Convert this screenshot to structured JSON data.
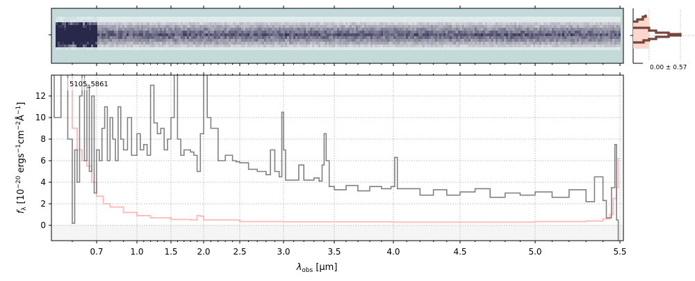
{
  "chart_data": {
    "type": "line",
    "object_id": "5105_5861",
    "xlabel": "λobs [μm]",
    "xlabel_main": "λ",
    "xlabel_sub": "obs",
    "xlabel_unit": " [μm]",
    "ylabel": "fλ [10^-20 ergs^-1 cm^-2 Å^-1]",
    "xlim": [
      0.51,
      5.52
    ],
    "ylim": [
      -1.4,
      13.9
    ],
    "x_scale": "nonlinear (resolution-matched)",
    "x_ticks": [
      0.7,
      1.0,
      1.5,
      2.0,
      2.5,
      3.0,
      3.5,
      4.0,
      4.5,
      5.0,
      5.5
    ],
    "x_tick_labels": [
      "0.7",
      "1.0",
      "1.5",
      "2.0",
      "2.5",
      "3.0",
      "3.5",
      "4.0",
      "4.5",
      "5.0",
      "5.5"
    ],
    "y_ticks": [
      0,
      2,
      4,
      6,
      8,
      10,
      12
    ],
    "y_tick_labels": [
      "0",
      "2",
      "4",
      "6",
      "8",
      "10",
      "12"
    ],
    "grid": true,
    "colors": {
      "flux": "#808080",
      "error": "#ffb3b3",
      "zero_band": "#f3f3f3",
      "trace_bg": "#c4d9d9"
    },
    "series": [
      {
        "role": "flux",
        "drawstyle": "steps",
        "x": [
          0.53,
          0.545,
          0.56,
          0.575,
          0.59,
          0.6,
          0.61,
          0.62,
          0.63,
          0.64,
          0.65,
          0.66,
          0.67,
          0.68,
          0.69,
          0.7,
          0.72,
          0.74,
          0.76,
          0.78,
          0.8,
          0.82,
          0.84,
          0.86,
          0.88,
          0.9,
          0.93,
          0.96,
          1.0,
          1.05,
          1.1,
          1.15,
          1.2,
          1.25,
          1.3,
          1.35,
          1.4,
          1.45,
          1.5,
          1.55,
          1.6,
          1.65,
          1.7,
          1.8,
          1.85,
          1.9,
          1.95,
          2.0,
          2.03,
          2.05,
          2.1,
          2.2,
          2.3,
          2.4,
          2.45,
          2.5,
          2.6,
          2.7,
          2.8,
          2.85,
          2.9,
          2.95,
          2.98,
          3.0,
          3.02,
          3.1,
          3.15,
          3.2,
          3.3,
          3.35,
          3.38,
          3.4,
          3.42,
          3.45,
          3.5,
          3.6,
          3.7,
          3.8,
          3.9,
          3.98,
          4.01,
          4.03,
          4.1,
          4.2,
          4.3,
          4.4,
          4.5,
          4.6,
          4.7,
          4.8,
          4.9,
          5.0,
          5.1,
          5.2,
          5.3,
          5.35,
          5.4,
          5.42,
          5.45,
          5.47,
          5.48,
          5.49
        ],
        "y": [
          -1.4,
          14,
          10,
          14,
          8,
          0.2,
          7,
          4,
          12,
          14,
          6,
          13,
          5,
          12,
          3,
          7,
          6,
          9,
          11,
          6,
          10,
          8,
          6,
          11,
          8,
          7,
          10,
          6.5,
          8.5,
          7,
          7.5,
          6.5,
          13,
          9.5,
          8.5,
          9,
          7,
          8,
          10,
          14,
          8,
          6.5,
          7,
          6.8,
          6.5,
          5,
          8.5,
          14,
          14,
          10,
          9,
          6,
          6.5,
          6,
          5.9,
          5.8,
          5.2,
          5,
          4.7,
          7,
          5,
          4.5,
          10.5,
          7,
          4.2,
          4.2,
          5.6,
          4.2,
          4.4,
          4.1,
          5.6,
          8.5,
          6,
          3.6,
          3.3,
          3.7,
          3.2,
          3.6,
          3.4,
          3.6,
          6.3,
          3.4,
          3.4,
          2.8,
          3.3,
          2.8,
          3.1,
          3.4,
          2.6,
          3,
          2.8,
          3.1,
          2.6,
          3.3,
          2.2,
          4.5,
          2.3,
          0.7,
          3.5,
          7.5,
          0.5,
          -1.4
        ]
      },
      {
        "role": "error",
        "drawstyle": "steps",
        "x": [
          0.53,
          0.58,
          0.6,
          0.62,
          0.64,
          0.66,
          0.68,
          0.7,
          0.75,
          0.8,
          0.9,
          1.0,
          1.2,
          1.5,
          1.8,
          1.9,
          1.95,
          2.0,
          2.5,
          3.0,
          4.0,
          4.5,
          5.0,
          5.3,
          5.4,
          5.44,
          5.46,
          5.48,
          5.49,
          5.5
        ],
        "y": [
          14,
          14,
          9,
          7,
          6,
          5.5,
          4,
          2.7,
          2,
          1.7,
          1.2,
          0.9,
          0.7,
          0.55,
          0.5,
          0.9,
          0.85,
          0.5,
          0.35,
          0.33,
          0.3,
          0.3,
          0.35,
          0.4,
          0.6,
          1,
          2.5,
          3.5,
          6.2,
          6.2
        ]
      }
    ]
  },
  "profile_panel": {
    "label": "0.00 ± 0.57"
  }
}
